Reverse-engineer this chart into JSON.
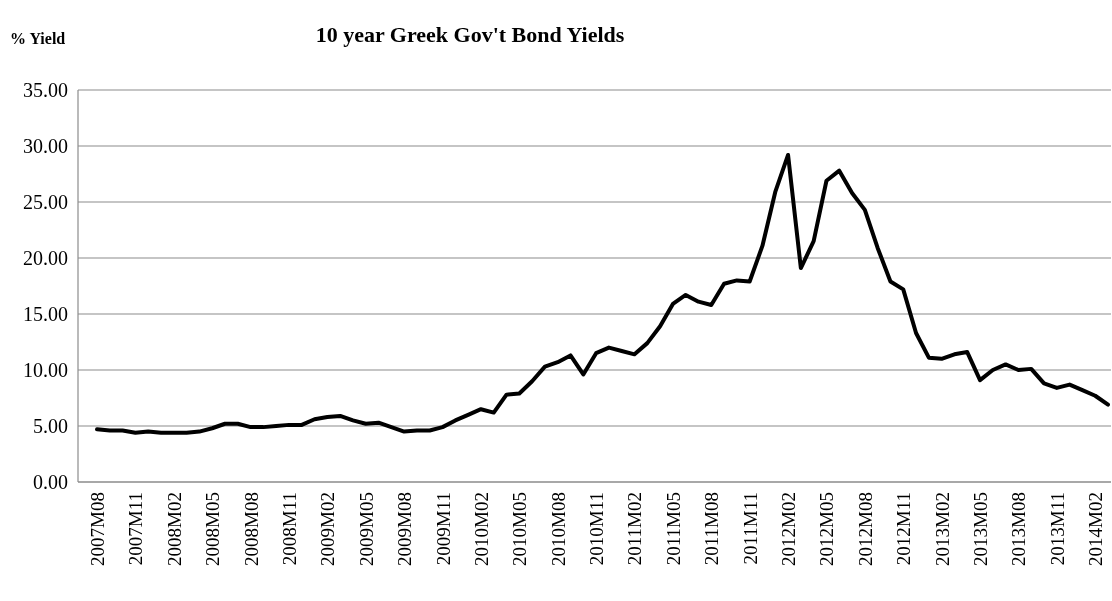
{
  "chart_data": {
    "type": "line",
    "title": "10 year Greek Gov't Bond Yields",
    "ylabel": "% Yield",
    "categories": [
      "2007M08",
      null,
      null,
      "2007M11",
      null,
      null,
      "2008M02",
      null,
      null,
      "2008M05",
      null,
      null,
      "2008M08",
      null,
      null,
      "2008M11",
      null,
      null,
      "2009M02",
      null,
      null,
      "2009M05",
      null,
      null,
      "2009M08",
      null,
      null,
      "2009M11",
      null,
      null,
      "2010M02",
      null,
      null,
      "2010M05",
      null,
      null,
      "2010M08",
      null,
      null,
      "2010M11",
      null,
      null,
      "2011M02",
      null,
      null,
      "2011M05",
      null,
      null,
      "2011M08",
      null,
      null,
      "2011M11",
      null,
      null,
      "2012M02",
      null,
      null,
      "2012M05",
      null,
      null,
      "2012M08",
      null,
      null,
      "2012M11",
      null,
      null,
      "2013M02",
      null,
      null,
      "2013M05",
      null,
      null,
      "2013M08",
      null,
      null,
      "2013M11",
      null,
      null,
      "2014M02",
      null
    ],
    "series": [
      {
        "color": "#000000",
        "values": [
          4.7,
          4.6,
          4.6,
          4.4,
          4.5,
          4.4,
          4.4,
          4.4,
          4.5,
          4.8,
          5.2,
          5.2,
          4.9,
          4.9,
          5.0,
          5.1,
          5.1,
          5.6,
          5.8,
          5.9,
          5.5,
          5.2,
          5.3,
          4.9,
          4.5,
          4.6,
          4.6,
          4.9,
          5.5,
          6.0,
          6.5,
          6.2,
          7.8,
          7.9,
          9.0,
          10.3,
          10.7,
          11.3,
          9.6,
          11.5,
          12.0,
          11.7,
          11.4,
          12.4,
          13.9,
          15.9,
          16.7,
          16.1,
          15.8,
          17.7,
          18.0,
          17.9,
          21.1,
          25.9,
          29.2,
          19.1,
          21.5,
          26.9,
          27.8,
          25.8,
          24.3,
          20.9,
          17.9,
          17.2,
          13.3,
          11.1,
          11.0,
          11.4,
          11.6,
          9.1,
          10.0,
          10.5,
          10.0,
          10.1,
          8.8,
          8.4,
          8.7,
          8.2,
          7.7,
          6.9
        ]
      }
    ],
    "ylim": [
      0,
      35
    ],
    "yticks": [
      {
        "value": 0,
        "label": "0.00"
      },
      {
        "value": 5,
        "label": "5.00"
      },
      {
        "value": 10,
        "label": "10.00"
      },
      {
        "value": 15,
        "label": "15.00"
      },
      {
        "value": 20,
        "label": "20.00"
      },
      {
        "value": 25,
        "label": "25.00"
      },
      {
        "value": 30,
        "label": "30.00"
      },
      {
        "value": 35,
        "label": "35.00"
      }
    ],
    "grid": "y",
    "marker": "none",
    "line_style": "solid"
  }
}
